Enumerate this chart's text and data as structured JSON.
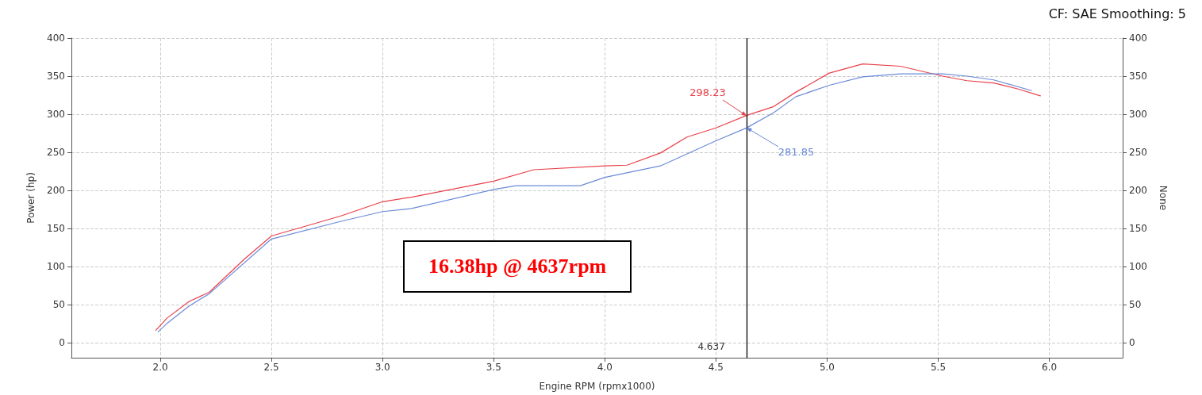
{
  "chart_data": {
    "type": "line",
    "subtitle": "CF: SAE Smoothing: 5",
    "xlabel": "Engine RPM (rpmx1000)",
    "ylabel": "Power (hp)",
    "y2label": "None",
    "xlim": [
      1.6,
      6.33
    ],
    "xticks": [
      {
        "value": 2,
        "label": "2.0"
      },
      2.5,
      {
        "value": 3,
        "label": "3.0"
      },
      3.5,
      {
        "value": 4,
        "label": "4.0"
      },
      4.5,
      {
        "value": 5,
        "label": "5.0"
      },
      5.5,
      {
        "value": 6,
        "label": "6.0"
      }
    ],
    "ylim": [
      -20,
      400
    ],
    "yticks": [
      0,
      50,
      100,
      150,
      200,
      250,
      300,
      350,
      400
    ],
    "y2lim": [
      -20,
      400
    ],
    "y2ticks": [
      0,
      50,
      100,
      150,
      200,
      250,
      300,
      350,
      400
    ],
    "grid": true,
    "marker": "none",
    "line_style": "solid",
    "series": [
      {
        "color": "#e8404a",
        "x": [
          1.98,
          2.03,
          2.13,
          2.22,
          2.38,
          2.5,
          2.81,
          3.0,
          3.13,
          3.5,
          3.68,
          4.0,
          4.1,
          4.25,
          4.37,
          4.5,
          4.637,
          4.76,
          4.86,
          5.01,
          5.16,
          5.33,
          5.52,
          5.63,
          5.75,
          5.86,
          5.96
        ],
        "values": [
          16,
          32,
          54,
          66,
          110,
          140,
          166,
          185,
          191,
          212,
          227,
          232,
          233,
          249,
          270,
          282,
          298.23,
          310,
          329,
          354,
          366,
          363,
          350,
          344,
          341,
          333,
          324
        ]
      },
      {
        "color": "#6a8ad8",
        "x": [
          1.99,
          2.03,
          2.13,
          2.22,
          2.5,
          2.81,
          3.0,
          3.13,
          3.5,
          3.6,
          3.89,
          4.0,
          4.25,
          4.5,
          4.637,
          4.76,
          4.86,
          5.01,
          5.16,
          5.33,
          5.52,
          5.63,
          5.75,
          5.92
        ],
        "values": [
          14,
          25,
          48,
          64,
          136,
          159,
          172,
          176,
          201,
          206,
          206,
          217,
          232,
          265,
          281.85,
          302,
          323,
          338,
          349,
          353,
          353,
          350,
          345,
          331
        ]
      }
    ],
    "ref_lines": [
      {
        "axis": "x",
        "value": 4.637,
        "label": "4.637",
        "color": "#000000"
      }
    ],
    "annotations": [
      "16.38hp @ 4637rpm",
      {
        "text": "298.23",
        "x": 4.637,
        "y": 298.23
      },
      {
        "text": "281.85",
        "x": 4.637,
        "y": 281.85
      }
    ]
  }
}
